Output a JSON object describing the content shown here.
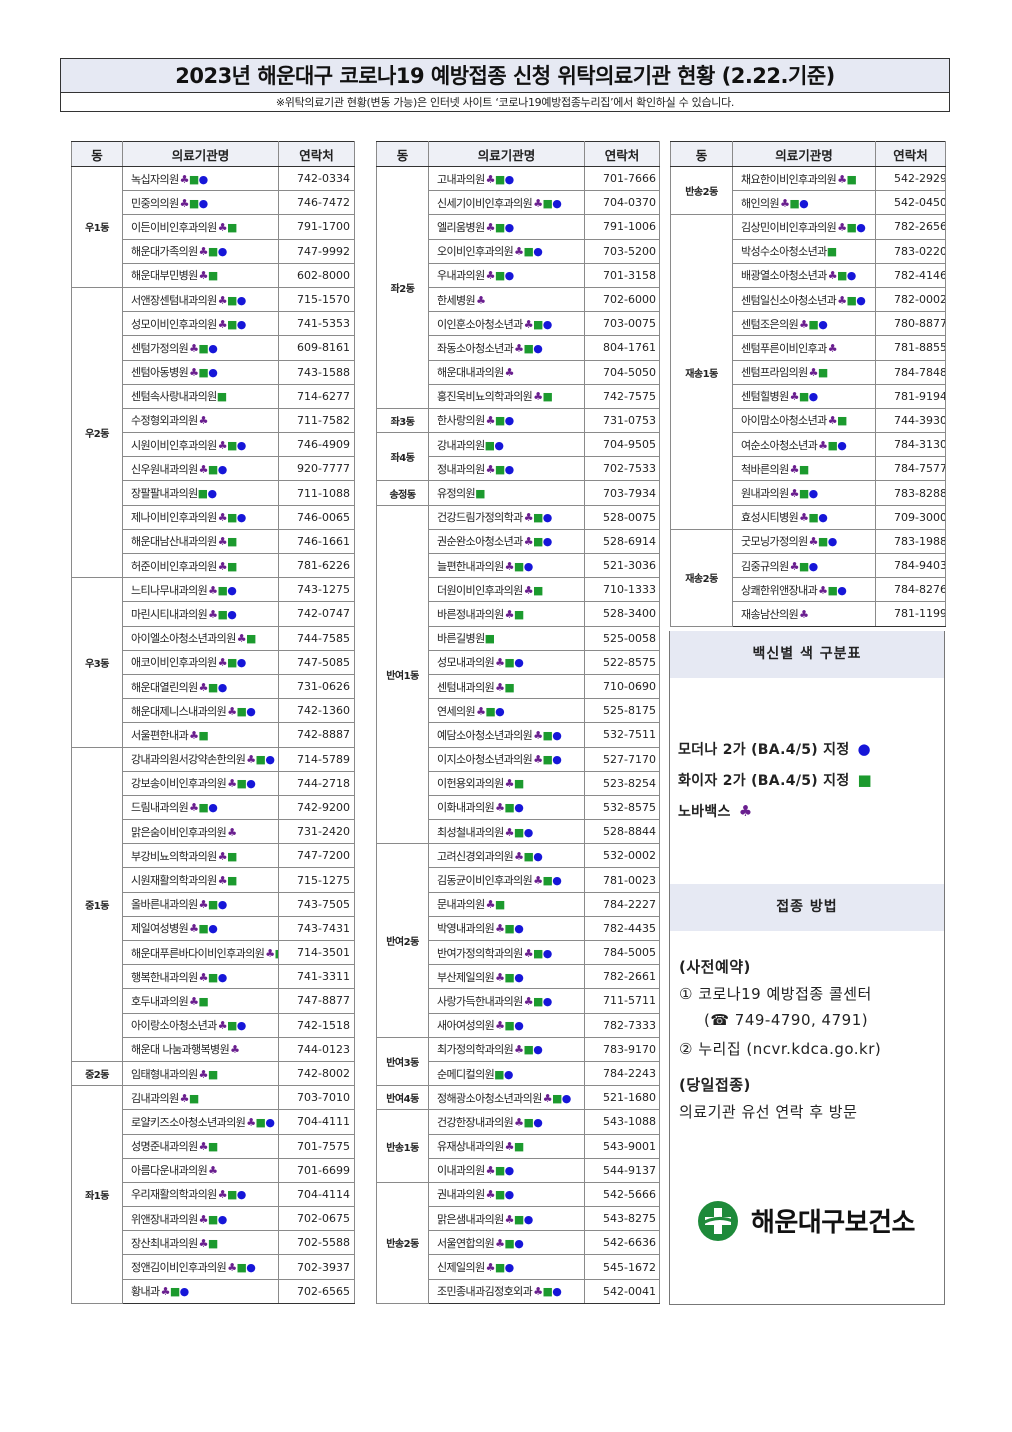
{
  "header": {
    "title": "2023년 해운대구 코로나19 예방접종 신청 위탁의료기관 현황 (2.22.기준)",
    "subtitle": "※위탁의료기관 현황(변동 가능)은 인터넷 사이트 ‘코로나19예방접종누리집’에서 확인하실 수 있습니다."
  },
  "table_headers": {
    "dong": "동",
    "name": "의료기관명",
    "phone": "연락처"
  },
  "vaccine_legend": {
    "moderna": {
      "symbol": "●",
      "color": "#1616d8"
    },
    "pfizer": {
      "symbol": "■",
      "color": "#1c9a2e"
    },
    "novavax": {
      "symbol": "♣",
      "color": "#6a1f8f"
    }
  },
  "columns": [
    [
      {
        "dong": "우1동",
        "rows": [
          {
            "name": "녹십자의원",
            "v": "cs d",
            "phone": "742-0334"
          },
          {
            "name": "민중의의원",
            "v": "cs d",
            "phone": "746-7472"
          },
          {
            "name": "이든이비인후과의원",
            "v": "cs",
            "phone": "791-1700"
          },
          {
            "name": "해운대가족의원",
            "v": "cs d",
            "phone": "747-9992"
          },
          {
            "name": "해운대부민병원",
            "v": "cs",
            "phone": "602-8000"
          }
        ]
      },
      {
        "dong": "우2동",
        "rows": [
          {
            "name": "서앤장센텀내과의원",
            "v": "cs d",
            "phone": "715-1570"
          },
          {
            "name": "성모이비인후과의원",
            "v": "cs d",
            "phone": "741-5353"
          },
          {
            "name": "센텀가정의원",
            "v": "cs d",
            "phone": "609-8161"
          },
          {
            "name": "센텀아동병원",
            "v": "cs d",
            "phone": "743-1588"
          },
          {
            "name": "센텀속사랑내과의원",
            "v": "s",
            "phone": "714-6277"
          },
          {
            "name": "수정형외과의원",
            "v": "c",
            "phone": "711-7582"
          },
          {
            "name": "시원이비인후과의원",
            "v": "cs d",
            "phone": "746-4909"
          },
          {
            "name": "신우원내과의원",
            "v": "cs d",
            "phone": "920-7777"
          },
          {
            "name": "장팔팔내과의원",
            "v": "s d",
            "phone": "711-1088"
          },
          {
            "name": "제나이비인후과의원",
            "v": "cs d",
            "phone": "746-0065"
          },
          {
            "name": "해운대남산내과의원",
            "v": "cs",
            "phone": "746-1661"
          },
          {
            "name": "허준이비인후과의원",
            "v": "cs",
            "phone": "781-6226"
          }
        ]
      },
      {
        "dong": "우3동",
        "rows": [
          {
            "name": "느티나무내과의원",
            "v": "cs d",
            "phone": "743-1275"
          },
          {
            "name": "마린시티내과의원",
            "v": "cs d",
            "phone": "742-0747"
          },
          {
            "name": "아이엘소아청소년과의원",
            "v": "cs",
            "phone": "744-7585"
          },
          {
            "name": "애코이비인후과의원",
            "v": "cs d",
            "phone": "747-5085"
          },
          {
            "name": "해운대열린의원",
            "v": "cs d",
            "phone": "731-0626"
          },
          {
            "name": "해운대제니스내과의원",
            "v": "cs d",
            "phone": "742-1360"
          },
          {
            "name": "서울편한내과",
            "v": "cs",
            "phone": "742-8887"
          }
        ]
      },
      {
        "dong": "중1동",
        "rows": [
          {
            "name": "강내과의원서강약손한의원",
            "v": "cs d",
            "phone": "714-5789"
          },
          {
            "name": "강보송이비인후과의원",
            "v": "cs d",
            "phone": "744-2718"
          },
          {
            "name": "드림내과의원",
            "v": "cs d",
            "phone": "742-9200"
          },
          {
            "name": "맑은숨이비인후과의원",
            "v": "c",
            "phone": "731-2420"
          },
          {
            "name": "부강비뇨의학과의원",
            "v": "cs",
            "phone": "747-7200"
          },
          {
            "name": "시원재활의학과의원",
            "v": "cs",
            "phone": "715-1275"
          },
          {
            "name": "올바른내과의원",
            "v": "cs d",
            "phone": "743-7505"
          },
          {
            "name": "제일여성병원",
            "v": "cs d",
            "phone": "743-7431"
          },
          {
            "name": "해운대푸른바다이비인후과의원",
            "v": "cs d",
            "phone": "714-3501"
          },
          {
            "name": "행복한내과의원",
            "v": "cs d",
            "phone": "741-3311"
          },
          {
            "name": "호두내과의원",
            "v": "cs",
            "phone": "747-8877"
          },
          {
            "name": "아이랑소아청소년과",
            "v": "cs d",
            "phone": "742-1518"
          },
          {
            "name": "해운대 나눔과행복병원",
            "v": "c",
            "phone": "744-0123"
          }
        ]
      },
      {
        "dong": "중2동",
        "rows": [
          {
            "name": "임태형내과의원",
            "v": "cs",
            "phone": "742-8002"
          }
        ]
      },
      {
        "dong": "좌1동",
        "rows": [
          {
            "name": "김내과의원",
            "v": "cs",
            "phone": "703-7010"
          },
          {
            "name": "로얄키즈소아청소년과의원",
            "v": "cs d",
            "phone": "704-4111"
          },
          {
            "name": "성명준내과의원",
            "v": "cs",
            "phone": "701-7575"
          },
          {
            "name": "아름다운내과의원",
            "v": "c",
            "phone": "701-6699"
          },
          {
            "name": "우리재활의학과의원",
            "v": "cs d",
            "phone": "704-4114"
          },
          {
            "name": "위앤장내과의원",
            "v": "cs d",
            "phone": "702-0675"
          },
          {
            "name": "장산최내과의원",
            "v": "cs",
            "phone": "702-5588"
          },
          {
            "name": "정앤김이비인후과의원",
            "v": "cs d",
            "phone": "702-3937"
          },
          {
            "name": "황내과",
            "v": "cs d",
            "phone": "702-6565"
          }
        ]
      }
    ],
    [
      {
        "dong": "좌2동",
        "rows": [
          {
            "name": "고내과의원",
            "v": "cs d",
            "phone": "701-7666"
          },
          {
            "name": "신세기이비인후과의원",
            "v": "cs d",
            "phone": "704-0370"
          },
          {
            "name": "엘리움병원",
            "v": "cs d",
            "phone": "791-1006"
          },
          {
            "name": "오이비인후과의원",
            "v": "cs d",
            "phone": "703-5200"
          },
          {
            "name": "우내과의원",
            "v": "cs d",
            "phone": "701-3158"
          },
          {
            "name": "한세병원",
            "v": "c",
            "phone": "702-6000"
          },
          {
            "name": "이인훈소아청소년과",
            "v": "cs d",
            "phone": "703-0075"
          },
          {
            "name": "좌동소아청소년과",
            "v": "cs d",
            "phone": "804-1761"
          },
          {
            "name": "해운대내과의원",
            "v": "c",
            "phone": "704-5050"
          },
          {
            "name": "홍진욱비뇨의학과의원",
            "v": "cs",
            "phone": "742-7575"
          }
        ]
      },
      {
        "dong": "좌3동",
        "rows": [
          {
            "name": "한사랑의원",
            "v": "cs d",
            "phone": "731-0753"
          }
        ]
      },
      {
        "dong": "좌4동",
        "rows": [
          {
            "name": "강내과의원",
            "v": "s d",
            "phone": "704-9505"
          },
          {
            "name": "정내과의원",
            "v": "cs d",
            "phone": "702-7533"
          }
        ]
      },
      {
        "dong": "송정동",
        "rows": [
          {
            "name": "유정의원",
            "v": "s",
            "phone": "703-7934"
          }
        ]
      },
      {
        "dong": "반여1동",
        "rows": [
          {
            "name": "건강드림가정의학과",
            "v": "cs d",
            "phone": "528-0075"
          },
          {
            "name": "권순완소아청소년과",
            "v": "cs d",
            "phone": "528-6914"
          },
          {
            "name": "늘편한내과의원",
            "v": "cs d",
            "phone": "521-3036"
          },
          {
            "name": "더원이비인후과의원",
            "v": "cs",
            "phone": "710-1333"
          },
          {
            "name": "바른정내과의원",
            "v": "cs",
            "phone": "528-3400"
          },
          {
            "name": "바른길병원",
            "v": "s",
            "phone": "525-0058"
          },
          {
            "name": "성모내과의원",
            "v": "cs d",
            "phone": "522-8575"
          },
          {
            "name": "센텀내과의원",
            "v": "cs",
            "phone": "710-0690"
          },
          {
            "name": "연세의원",
            "v": "cs d",
            "phone": "525-8175"
          },
          {
            "name": "예담소아청소년과의원",
            "v": "cs d",
            "phone": "532-7511"
          },
          {
            "name": "이지소아청소년과의원",
            "v": "cs d",
            "phone": "527-7170"
          },
          {
            "name": "이헌용외과의원",
            "v": "cs",
            "phone": "523-8254"
          },
          {
            "name": "이화내과의원",
            "v": "cs d",
            "phone": "532-8575"
          },
          {
            "name": "최성철내과의원",
            "v": "cs d",
            "phone": "528-8844"
          }
        ]
      },
      {
        "dong": "반여2동",
        "rows": [
          {
            "name": "고려신경외과의원",
            "v": "cs d",
            "phone": "532-0002"
          },
          {
            "name": "김동균이비인후과의원",
            "v": "cs d",
            "phone": "781-0023"
          },
          {
            "name": "문내과의원",
            "v": "cs",
            "phone": "784-2227"
          },
          {
            "name": "박영내과의원",
            "v": "cs d",
            "phone": "782-4435"
          },
          {
            "name": "반여가정의학과의원",
            "v": "cs d",
            "phone": "784-5005"
          },
          {
            "name": "부산제일의원",
            "v": "cs d",
            "phone": "782-2661"
          },
          {
            "name": "사랑가득한내과의원",
            "v": "cs d",
            "phone": "711-5711"
          },
          {
            "name": "새아여성의원",
            "v": "cs d",
            "phone": "782-7333"
          }
        ]
      },
      {
        "dong": "반여3동",
        "rows": [
          {
            "name": "최가정의학과의원",
            "v": "cs d",
            "phone": "783-9170"
          },
          {
            "name": "순메디컬의원",
            "v": "s d",
            "phone": "784-2243"
          }
        ]
      },
      {
        "dong": "반여4동",
        "rows": [
          {
            "name": "정해광소아청소년과의원",
            "v": "cs d",
            "phone": "521-1680"
          }
        ]
      },
      {
        "dong": "반송1동",
        "rows": [
          {
            "name": "건강한장내과의원",
            "v": "cs d",
            "phone": "543-1088"
          },
          {
            "name": "유재상내과의원",
            "v": "cs",
            "phone": "543-9001"
          },
          {
            "name": "이내과의원",
            "v": "cs d",
            "phone": "544-9137"
          }
        ]
      },
      {
        "dong": "반송2동",
        "rows": [
          {
            "name": "권내과의원",
            "v": "cs d",
            "phone": "542-5666"
          },
          {
            "name": "맑은샘내과의원",
            "v": "cs d",
            "phone": "543-8275"
          },
          {
            "name": "서울연합의원",
            "v": "cs d",
            "phone": "542-6636"
          },
          {
            "name": "신제일의원",
            "v": "cs d",
            "phone": "545-1672"
          },
          {
            "name": "조민종내과김정호외과",
            "v": "cs d",
            "phone": "542-0041"
          }
        ]
      }
    ],
    [
      {
        "dong": "반송2동",
        "rows": [
          {
            "name": "채요한이비인후과의원",
            "v": "cs",
            "phone": "542-2929"
          },
          {
            "name": "해인의원",
            "v": "cs d",
            "phone": "542-0450"
          }
        ]
      },
      {
        "dong": "재송1동",
        "rows": [
          {
            "name": "김상민이비인후과의원",
            "v": "cs d",
            "phone": "782-2656"
          },
          {
            "name": "박성수소아청소년과",
            "v": "s",
            "phone": "783-0220"
          },
          {
            "name": "배광열소아청소년과",
            "v": "cs d",
            "phone": "782-4146"
          },
          {
            "name": "센텀일신소아청소년과",
            "v": "cs d",
            "phone": "782-0002"
          },
          {
            "name": "센텀조은의원",
            "v": "cs d",
            "phone": "780-8877"
          },
          {
            "name": "센텀푸른이비인후과",
            "v": "c",
            "phone": "781-8855"
          },
          {
            "name": "센텀프라임의원",
            "v": "cs",
            "phone": "784-7848"
          },
          {
            "name": "센텀힐병원",
            "v": "cs d",
            "phone": "781-9194"
          },
          {
            "name": "아이맘소아청소년과",
            "v": "cs",
            "phone": "744-3930"
          },
          {
            "name": "여순소아청소년과",
            "v": "cs d",
            "phone": "784-3130"
          },
          {
            "name": "척바른의원",
            "v": "cs",
            "phone": "784-7577"
          },
          {
            "name": "원내과의원",
            "v": "cs d",
            "phone": "783-8288"
          },
          {
            "name": "효성시티병원",
            "v": "cs d",
            "phone": "709-3000"
          }
        ]
      },
      {
        "dong": "재송2동",
        "rows": [
          {
            "name": "굿모닝가정의원",
            "v": "cs d",
            "phone": "783-1988"
          },
          {
            "name": "김중규의원",
            "v": "cs d",
            "phone": "784-9403"
          },
          {
            "name": "상쾌한위앤장내과",
            "v": "cs d",
            "phone": "784-8276"
          },
          {
            "name": "재송남산의원",
            "v": "c",
            "phone": "781-1199"
          }
        ]
      }
    ]
  ],
  "legend_panel": {
    "heading": "백신별 색 구분표",
    "moderna_label": "모더나 2가 (BA.4/5) 지정",
    "pfizer_label": "화이자 2가 (BA.4/5) 지정",
    "novavax_label": "노바백스"
  },
  "method_panel": {
    "heading": "접종 방법",
    "pre_reservation": "(사전예약)",
    "call_center": "① 코로나19 예방접종 콜센터",
    "call_phone": "(☎ 749-4790, 4791)",
    "website": "② 누리집 (ncvr.kdca.go.kr)",
    "same_day": "(당일접종)",
    "same_day_desc": "의료기관 유선 연락 후 방문"
  },
  "logo": {
    "name": "해운대구보건소",
    "color": "#1e8a3a"
  }
}
